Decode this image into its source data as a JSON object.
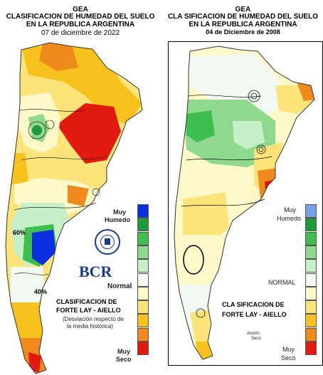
{
  "left": {
    "title_line1": "GEA",
    "title_line2": "CLASIFICACION DE HUMEDAD DEL SUELO",
    "title_line3": "EN LA REPUBLICA ARGENTINA",
    "date": "07 de diciembre de 2022",
    "legend_top_label_1": "Muy",
    "legend_top_label_2": "Humedo",
    "legend_mid_label": "Normal",
    "legend_bottom_label_1": "Muy",
    "legend_bottom_label_2": "Seco",
    "method_line1": "CLASIFICACION DE",
    "method_line2": "FORTE LAY - AIELLO",
    "note_line1": "(Desviación respecto de",
    "note_line2": "la media histórica)",
    "logo_text": "BCR",
    "contour_label_a": "60%",
    "contour_label_b": "40%"
  },
  "right": {
    "title_line1": "GEA",
    "title_line2": "CLA SIFICACION DE HUMEDAD DEL SUELO",
    "title_line3": "EN LA REPUBLICA ARGENTINA",
    "date": "04 de Diciembre de 2008",
    "legend_top_label_1": "Muy",
    "legend_top_label_2": "Humedo",
    "legend_mid_label": "NORMAL",
    "legend_bottom_label_1": "Muy",
    "legend_bottom_label_2": "Seco",
    "method_line1": "CLA SIFICACION DE",
    "method_line2": "FORTE LAY - AIELLO",
    "anomaly_label_1": "Anorm.",
    "anomaly_label_2": "Seco"
  },
  "legend_colors": [
    "#0b2fe0",
    "#1e9a3a",
    "#3fbf4f",
    "#8fd98f",
    "#c8f0c8",
    "#f2f8f2",
    "#fff8c8",
    "#fce37a",
    "#f7c21e",
    "#f08a1c",
    "#e11a10"
  ],
  "legend_colors_right": [
    "#7aa0e8",
    "#1e9a3a",
    "#3fbf4f",
    "#8fd98f",
    "#c8f0c8",
    "#f2f8f2",
    "#fff8c8",
    "#fce37a",
    "#f7c21e",
    "#f08a1c",
    "#e11a10"
  ],
  "icons": {
    "seal": "bcr-seal-icon"
  }
}
